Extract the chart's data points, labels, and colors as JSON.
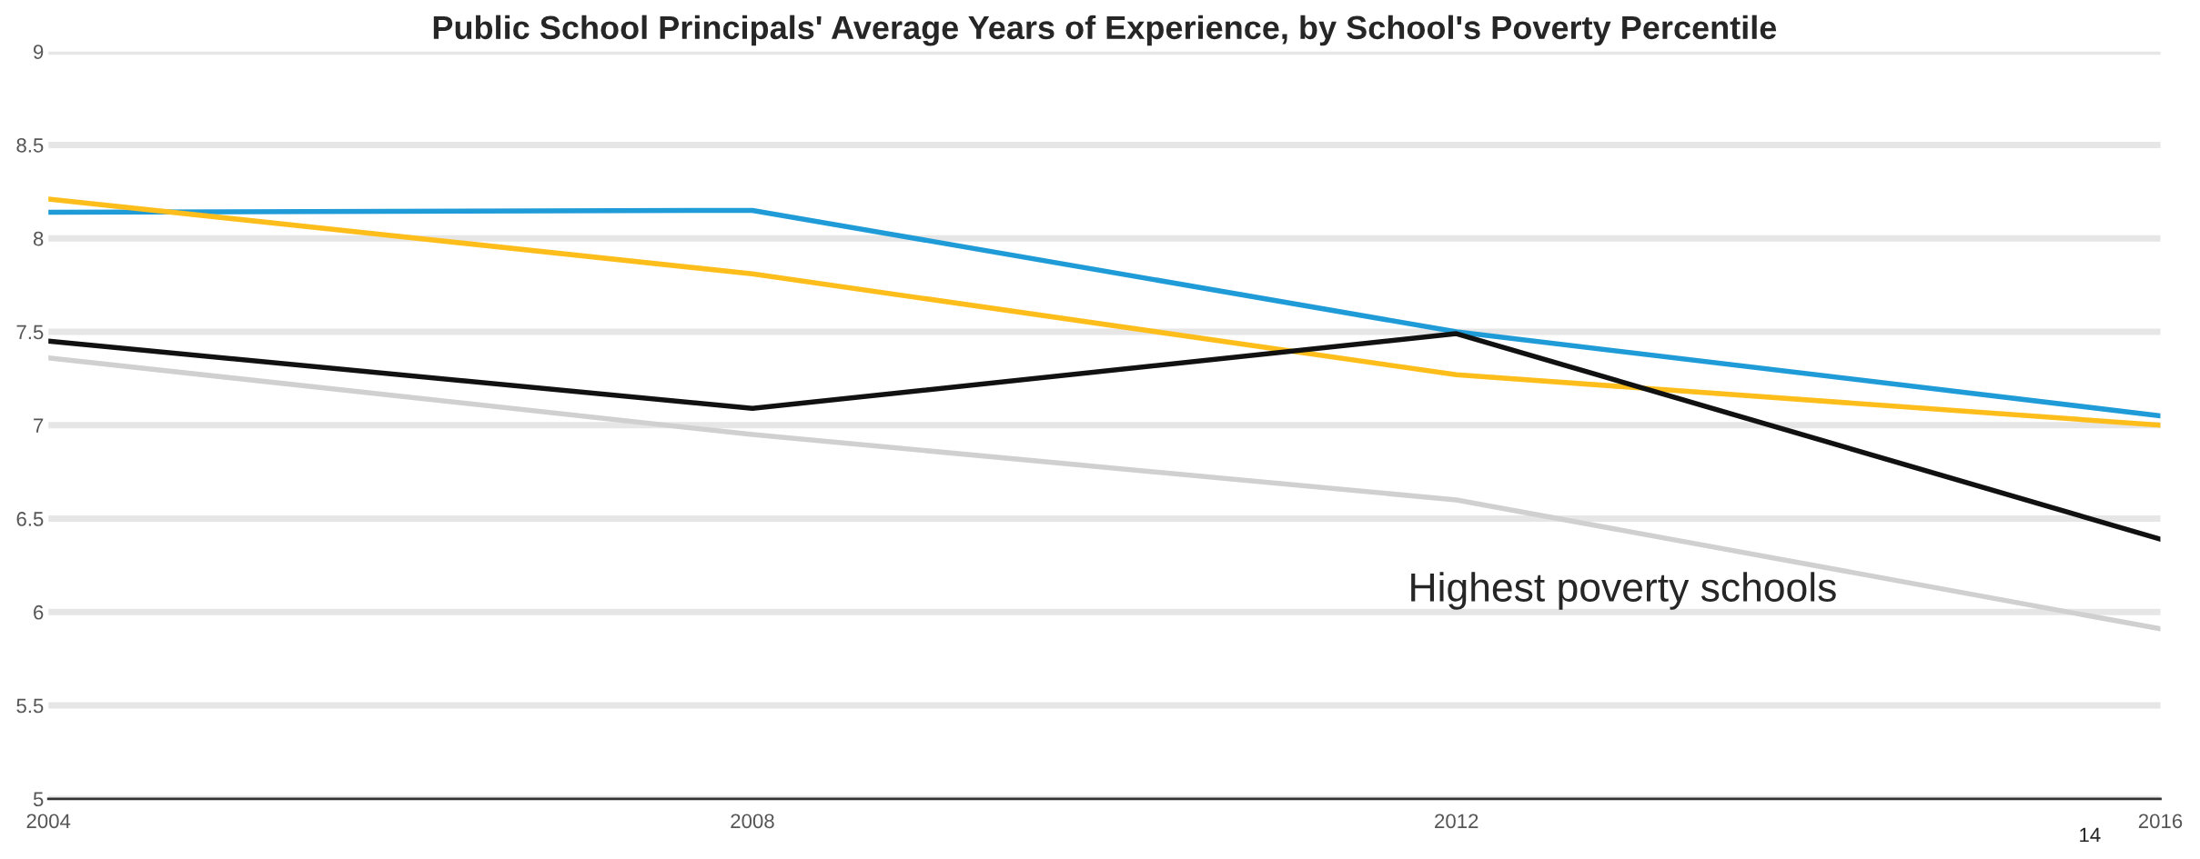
{
  "chart_data": {
    "type": "line",
    "title": "Public School Principals' Average Years of Experience, by School's Poverty Percentile",
    "x": [
      2004,
      2008,
      2012,
      2016
    ],
    "series": [
      {
        "color": "#1f9bd7",
        "values": [
          8.14,
          8.15,
          7.5,
          7.05
        ]
      },
      {
        "color": "#fdbd1a",
        "values": [
          8.21,
          7.81,
          7.27,
          7.0
        ]
      },
      {
        "color": "#111111",
        "values": [
          7.45,
          7.09,
          7.49,
          6.39
        ]
      },
      {
        "color": "#d0d0d0",
        "values": [
          7.36,
          6.95,
          6.6,
          5.91
        ]
      }
    ],
    "xlim": [
      2004,
      2016
    ],
    "xticks": [
      2004,
      2008,
      2012,
      2016
    ],
    "ylim": [
      5,
      9
    ],
    "yticks": [
      5,
      5.5,
      6,
      6.5,
      7,
      7.5,
      8,
      8.5,
      9
    ],
    "grid": "y",
    "marker": "none",
    "line_style": "solid",
    "annotations": [
      "Highest poverty schools",
      "14"
    ]
  }
}
